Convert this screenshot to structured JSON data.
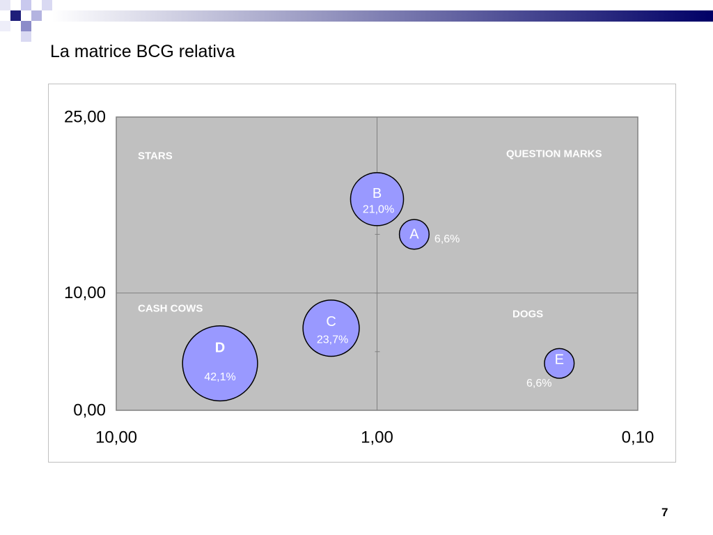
{
  "slide": {
    "title": "La matrice BCG relativa",
    "page_number": "7"
  },
  "colors": {
    "plot_background": "#c0c0c0",
    "plot_border": "#808080",
    "divider_line": "#808080",
    "bubble_fill": "#9999ff",
    "bubble_stroke": "#000000",
    "chart_label_text": "#ffffff",
    "tick_label_text": "#000000",
    "title_bar_start": "#ffffff",
    "title_bar_end": "#000066"
  },
  "chart_data": {
    "type": "scatter",
    "x_scale": "log",
    "x_reversed": true,
    "xlim": [
      10,
      0.1
    ],
    "ylim": [
      0,
      25
    ],
    "grid": false,
    "x_ticks": [
      {
        "value": 10,
        "label": "10,00"
      },
      {
        "value": 1,
        "label": "1,00"
      },
      {
        "value": 0.1,
        "label": "0,10"
      }
    ],
    "y_ticks": [
      {
        "value": 25,
        "label": "25,00"
      },
      {
        "value": 10,
        "label": "10,00"
      },
      {
        "value": 0,
        "label": "0,00"
      }
    ],
    "quadrant_split": {
      "x": 1,
      "y": 10
    },
    "quadrant_labels": {
      "top_left": "STARS",
      "top_right": "QUESTION MARKS",
      "bottom_left": "CASH COWS",
      "bottom_right": "DOGS"
    },
    "points": [
      {
        "name": "A",
        "x": 0.72,
        "y": 15,
        "size": 6.6,
        "size_label": "6,6%"
      },
      {
        "name": "B",
        "x": 1.0,
        "y": 18,
        "size": 21.0,
        "size_label": "21,0%"
      },
      {
        "name": "C",
        "x": 1.5,
        "y": 7,
        "size": 23.7,
        "size_label": "23,7%"
      },
      {
        "name": "D",
        "x": 4.0,
        "y": 4,
        "size": 42.1,
        "size_label": "42,1%"
      },
      {
        "name": "E",
        "x": 0.2,
        "y": 4,
        "size": 6.6,
        "size_label": "6,6%"
      }
    ]
  }
}
